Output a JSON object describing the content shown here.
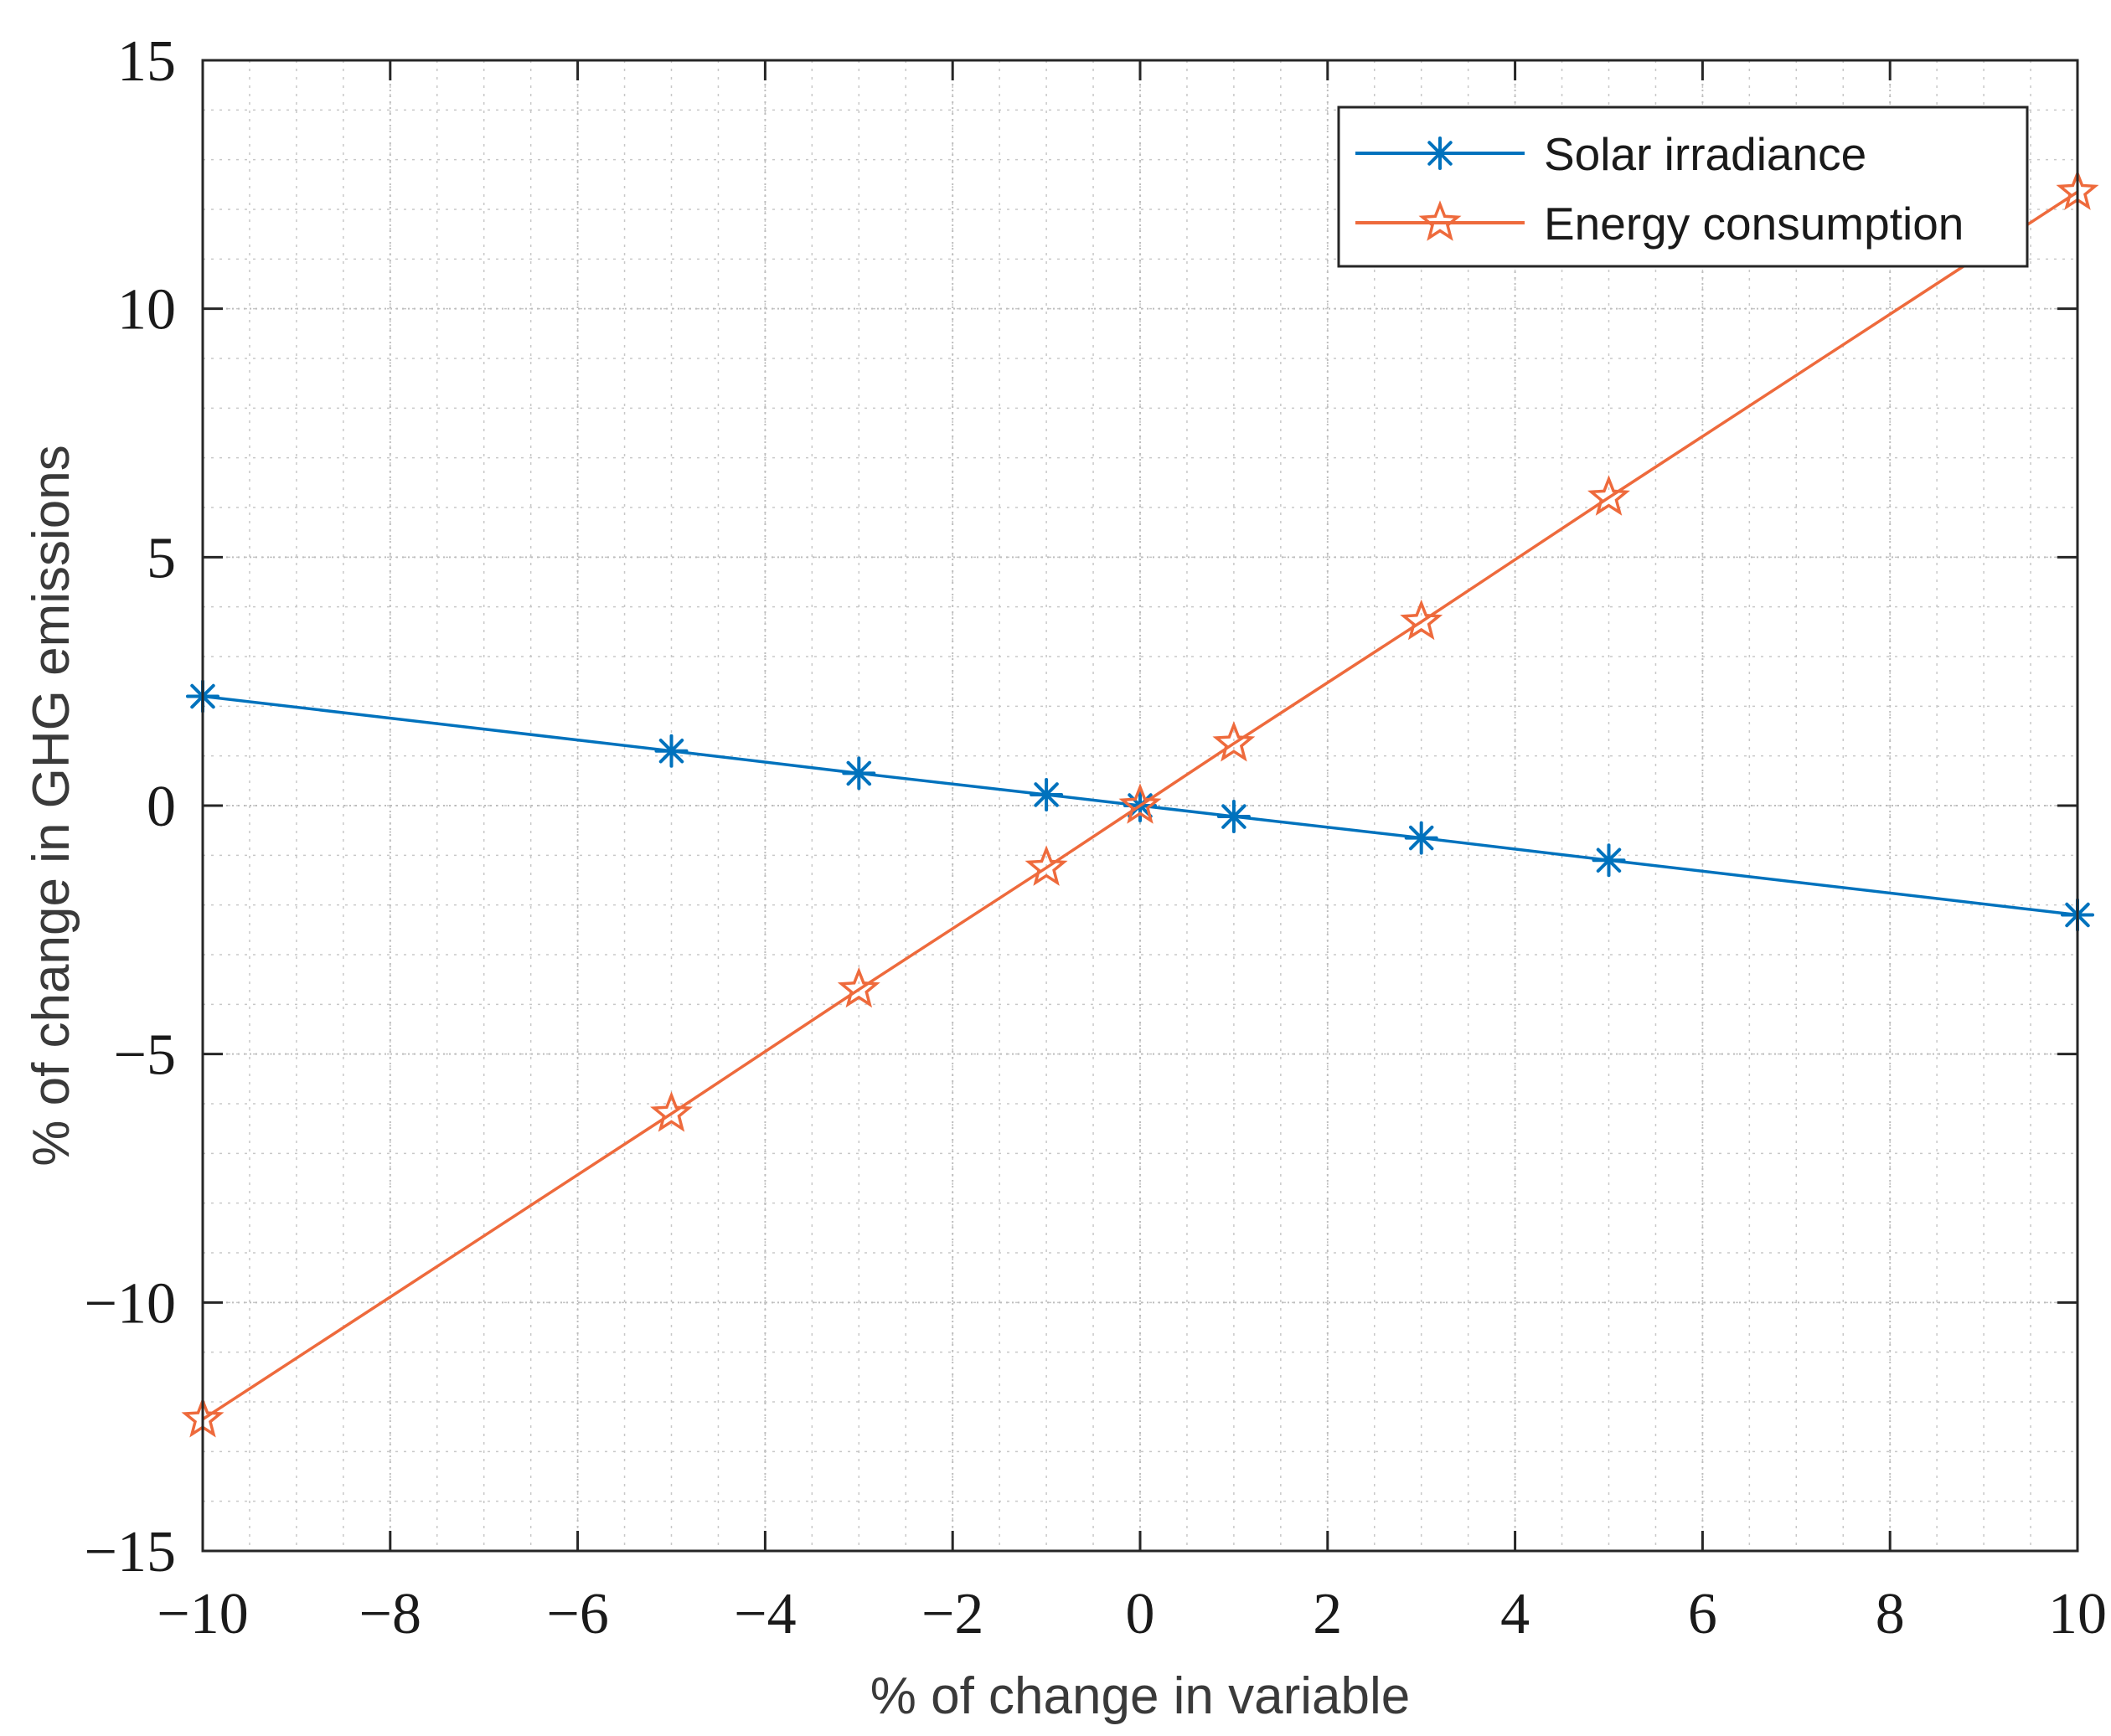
{
  "chart_data": {
    "type": "line",
    "title": "",
    "xlabel": "% of change in variable",
    "ylabel": "% of change in GHG emissions",
    "xlim": [
      -10,
      10
    ],
    "ylim": [
      -15,
      15
    ],
    "xticks": [
      -10,
      -8,
      -6,
      -4,
      -2,
      0,
      2,
      4,
      6,
      8,
      10
    ],
    "yticks": [
      -15,
      -10,
      -5,
      0,
      5,
      10,
      15
    ],
    "xtick_labels": [
      "−10",
      "−8",
      "−6",
      "−4",
      "−2",
      "0",
      "2",
      "4",
      "6",
      "8",
      "10"
    ],
    "ytick_labels": [
      "−15",
      "−10",
      "−5",
      "0",
      "5",
      "10",
      "15"
    ],
    "grid": true,
    "minor_grid": true,
    "legend_position": "top-right",
    "series": [
      {
        "name": "Solar irradiance",
        "color": "#0072bd",
        "marker": "asterisk",
        "x": [
          -10,
          -5,
          -3,
          -1,
          0,
          1,
          3,
          5,
          10
        ],
        "y": [
          2.2,
          1.1,
          0.65,
          0.22,
          0,
          -0.22,
          -0.65,
          -1.1,
          -2.2
        ]
      },
      {
        "name": "Energy consumption",
        "color": "#ee6a3c",
        "marker": "pentagram",
        "x": [
          -10,
          -5,
          -3,
          -1,
          0,
          1,
          3,
          5,
          10
        ],
        "y": [
          -12.35,
          -6.2,
          -3.7,
          -1.25,
          0,
          1.25,
          3.7,
          6.2,
          12.35
        ]
      }
    ]
  }
}
